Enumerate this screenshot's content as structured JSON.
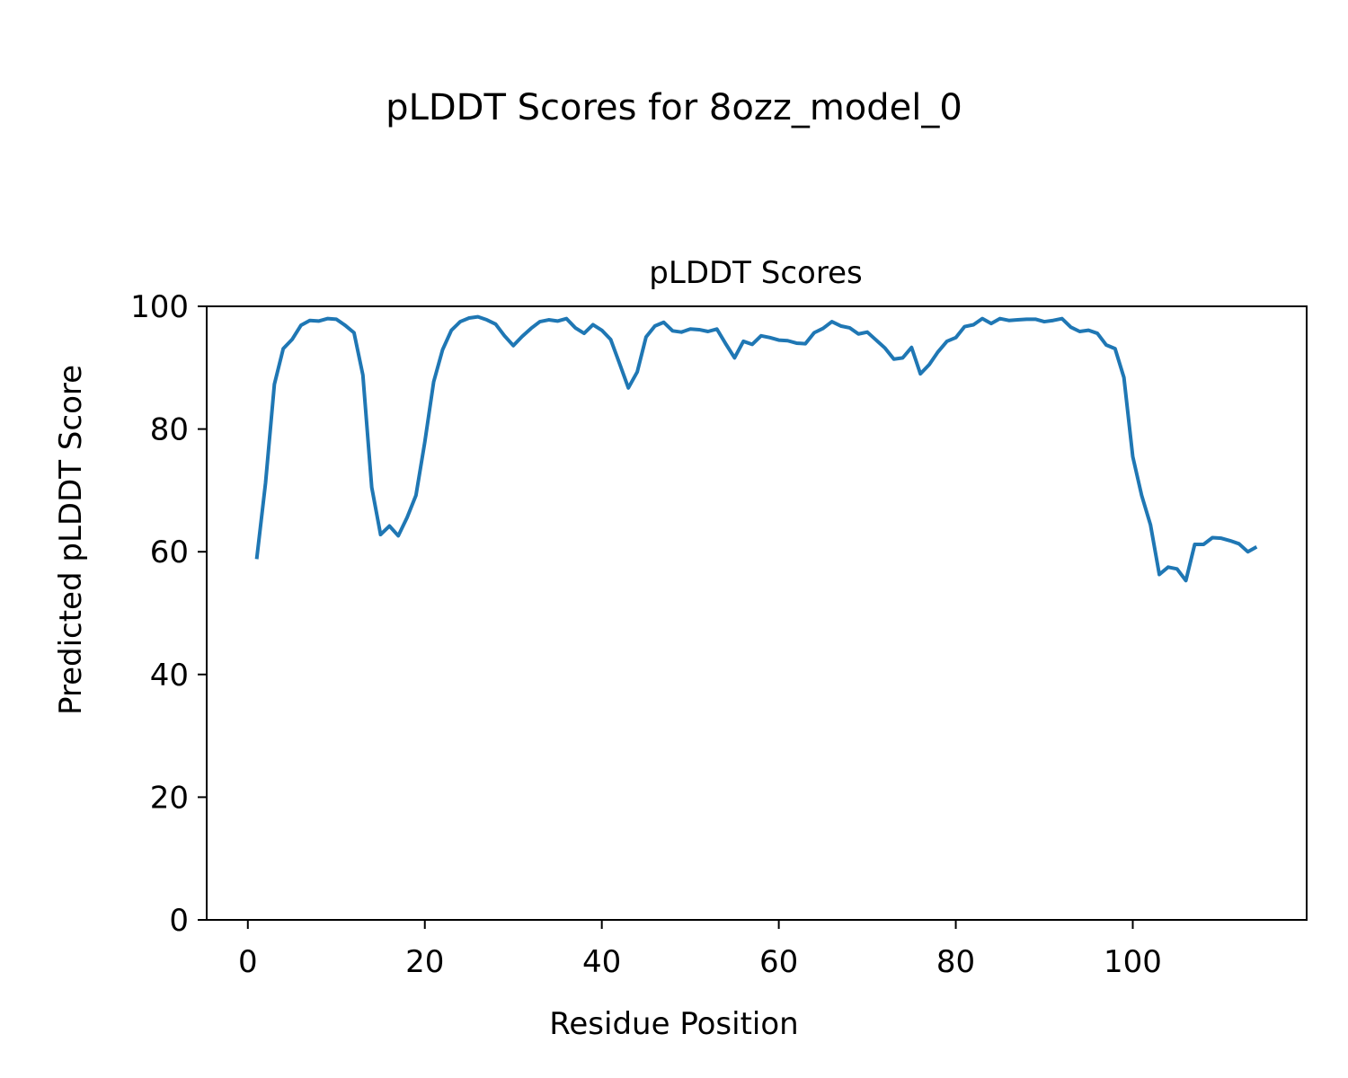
{
  "chart_data": {
    "type": "line",
    "title": "pLDDT Scores for 8ozz_model_0",
    "subtitle": "pLDDT Scores",
    "xlabel": "Residue Position",
    "ylabel": "Predicted pLDDT Score",
    "xlim": [
      -4.65,
      119.65
    ],
    "ylim": [
      0,
      100
    ],
    "xticks": [
      0,
      20,
      40,
      60,
      80,
      100
    ],
    "yticks": [
      0,
      20,
      40,
      60,
      80,
      100
    ],
    "grid": false,
    "line_color": "#1f77b4",
    "series": [
      {
        "x": [
          1,
          2,
          3,
          4,
          5,
          6,
          7,
          8,
          9,
          10,
          11,
          12,
          13,
          14,
          15,
          16,
          17,
          18,
          19,
          20,
          21,
          22,
          23,
          24,
          25,
          26,
          27,
          28,
          29,
          30,
          31,
          32,
          33,
          34,
          35,
          36,
          37,
          38,
          39,
          40,
          41,
          42,
          43,
          44,
          45,
          46,
          47,
          48,
          49,
          50,
          51,
          52,
          53,
          54,
          55,
          56,
          57,
          58,
          59,
          60,
          61,
          62,
          63,
          64,
          65,
          66,
          67,
          68,
          69,
          70,
          71,
          72,
          73,
          74,
          75,
          76,
          77,
          78,
          79,
          80,
          81,
          82,
          83,
          84,
          85,
          86,
          87,
          88,
          89,
          90,
          91,
          92,
          93,
          94,
          95,
          96,
          97,
          98,
          99,
          100,
          101,
          102,
          103,
          104,
          105,
          106,
          107,
          108,
          109,
          110,
          111,
          112,
          113,
          114
        ],
        "y": [
          58.8,
          71.2,
          87.3,
          93.1,
          94.6,
          96.9,
          97.7,
          97.6,
          98.0,
          97.9,
          96.9,
          95.7,
          88.8,
          70.5,
          62.8,
          64.2,
          62.6,
          65.6,
          69.2,
          77.9,
          87.7,
          92.9,
          96.1,
          97.5,
          98.1,
          98.3,
          97.8,
          97.1,
          95.2,
          93.6,
          95.1,
          96.4,
          97.5,
          97.8,
          97.6,
          98.0,
          96.5,
          95.6,
          97.0,
          96.1,
          94.6,
          90.7,
          86.7,
          89.3,
          95.0,
          96.8,
          97.4,
          96.0,
          95.8,
          96.3,
          96.2,
          95.9,
          96.3,
          93.9,
          91.6,
          94.3,
          93.8,
          95.2,
          94.9,
          94.5,
          94.4,
          94.0,
          93.9,
          95.7,
          96.4,
          97.5,
          96.8,
          96.5,
          95.5,
          95.8,
          94.5,
          93.2,
          91.4,
          91.6,
          93.3,
          89.0,
          90.5,
          92.6,
          94.3,
          94.9,
          96.7,
          97.0,
          98.0,
          97.2,
          98.0,
          97.7,
          97.8,
          97.9,
          97.9,
          97.5,
          97.7,
          98.0,
          96.6,
          95.9,
          96.1,
          95.6,
          93.7,
          93.1,
          88.4,
          75.5,
          69.2,
          64.4,
          56.3,
          57.5,
          57.2,
          55.3,
          61.2,
          61.2,
          62.3,
          62.2,
          61.8,
          61.3,
          60.0,
          60.8
        ]
      }
    ]
  }
}
